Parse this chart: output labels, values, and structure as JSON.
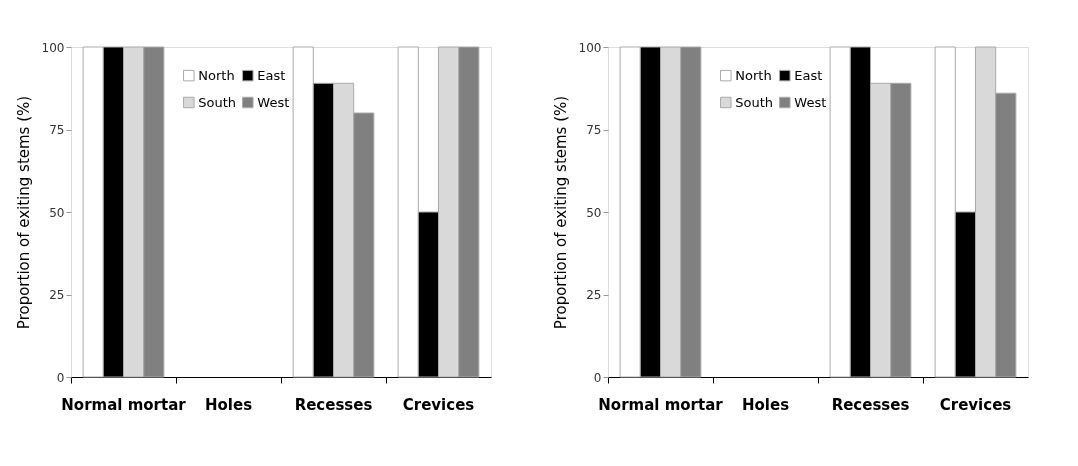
{
  "chart_data": [
    {
      "type": "bar",
      "ylabel": "Proportion of exiting stems (%)",
      "categories": [
        "Normal mortar",
        "Holes",
        "Recesses",
        "Crevices"
      ],
      "ylim": [
        0,
        100
      ],
      "yticks": [
        0,
        25,
        50,
        75,
        100
      ],
      "grid": false,
      "legend": "top left",
      "series": [
        {
          "name": "North",
          "color": "#ffffff",
          "values": [
            100,
            0,
            100,
            100
          ]
        },
        {
          "name": "East",
          "color": "#000000",
          "values": [
            100,
            0,
            89,
            50
          ]
        },
        {
          "name": "South",
          "color": "#d9d9d9",
          "values": [
            100,
            0,
            89,
            100
          ]
        },
        {
          "name": "West",
          "color": "#808080",
          "values": [
            100,
            0,
            80,
            100
          ]
        }
      ]
    },
    {
      "type": "bar",
      "ylabel": "Proportion of exiting stems (%)",
      "categories": [
        "Normal mortar",
        "Holes",
        "Recesses",
        "Crevices"
      ],
      "ylim": [
        0,
        100
      ],
      "yticks": [
        0,
        25,
        50,
        75,
        100
      ],
      "grid": false,
      "legend": "top left",
      "series": [
        {
          "name": "North",
          "color": "#ffffff",
          "values": [
            100,
            0,
            100,
            100
          ]
        },
        {
          "name": "East",
          "color": "#000000",
          "values": [
            100,
            0,
            100,
            50
          ]
        },
        {
          "name": "South",
          "color": "#d9d9d9",
          "values": [
            100,
            0,
            89,
            100
          ]
        },
        {
          "name": "West",
          "color": "#808080",
          "values": [
            100,
            0,
            89,
            86
          ]
        }
      ]
    }
  ]
}
